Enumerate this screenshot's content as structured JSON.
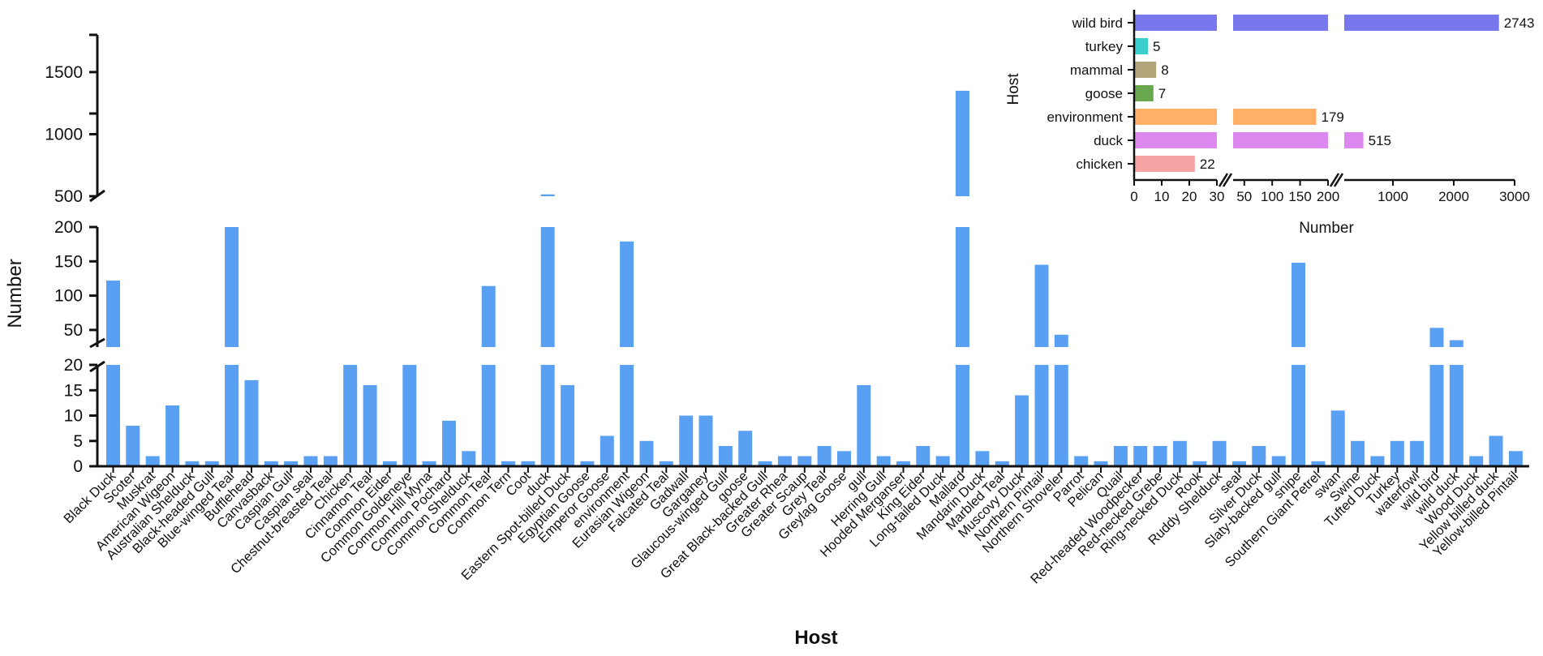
{
  "chart_data": [
    {
      "type": "bar",
      "title": "",
      "xlabel": "Host",
      "ylabel": "Number",
      "y_axis_segments": [
        {
          "range": [
            0,
            20
          ],
          "ticks": [
            "0",
            "5",
            "10",
            "15",
            "20"
          ]
        },
        {
          "range": [
            25,
            200
          ],
          "ticks": [
            "50",
            "100",
            "150",
            "200"
          ]
        },
        {
          "range": [
            500,
            1800
          ],
          "ticks": [
            "500",
            "1000",
            "1500"
          ]
        }
      ],
      "color": "#5aa0f2",
      "categories": [
        "Black Duck",
        "Scoter",
        "Muskrat",
        "American Wigeon",
        "Australian Shelduck",
        "Black-headed Gull",
        "Blue-winged Teal",
        "Bufflehead",
        "Canvasback",
        "Caspian Gull",
        "Caspian seal",
        "Chestnut-breasted Teal",
        "Chicken",
        "Cinnamon Teal",
        "Common Eider",
        "Common Goldeneye",
        "Common Hill Myna",
        "Common Pochard",
        "Common Shelduck",
        "Common Teal",
        "Common Tern",
        "Coot",
        "duck",
        "Eastern Spot-billed Duck",
        "Egyptian Goose",
        "Emperor Goose",
        "environment",
        "Eurasian Wigeon",
        "Falcated Teal",
        "Gadwall",
        "Garganey",
        "Glaucous-winged Gull",
        "goose",
        "Great Black-backed Gull",
        "Greater Rhea",
        "Greater Scaup",
        "Grey Teal",
        "Greylag Goose",
        "gull",
        "Herring Gull",
        "Hooded Merganser",
        "King Eider",
        "Long-tailed Duck",
        "Mallard",
        "Mandarin Duck",
        "Marbled Teal",
        "Muscovy Duck",
        "Northern Pintail",
        "Northern Shoveler",
        "Parrot",
        "Pelican",
        "Quail",
        "Red-headed Woodpecker",
        "Red-necked Grebe",
        "Ring-necked Duck",
        "Rook",
        "Ruddy Shelduck",
        "seal",
        "Silver Duck",
        "Slaty-backed gull",
        "snipe",
        "Southern Giant Petrel",
        "swan",
        "Swine",
        "Tufted Duck",
        "Turkey",
        "waterfowl",
        "wild bird",
        "wild duck",
        "Wood Duck",
        "Yellow billed duck",
        "Yellow-billed Pintail"
      ],
      "values": [
        122,
        8,
        2,
        12,
        1,
        1,
        360,
        17,
        1,
        1,
        2,
        2,
        22,
        16,
        1,
        22,
        1,
        9,
        3,
        114,
        1,
        1,
        515,
        16,
        1,
        6,
        179,
        5,
        1,
        10,
        10,
        4,
        7,
        1,
        2,
        2,
        4,
        3,
        16,
        2,
        1,
        4,
        2,
        1350,
        3,
        1,
        14,
        145,
        43,
        2,
        1,
        4,
        4,
        4,
        5,
        1,
        5,
        1,
        4,
        2,
        148,
        1,
        11,
        5,
        2,
        5,
        5,
        53,
        35,
        2,
        6,
        3
      ]
    },
    {
      "type": "bar",
      "orientation": "horizontal",
      "title": "",
      "xlabel": "Number",
      "ylabel": "Host",
      "x_axis_segments": [
        {
          "range": [
            0,
            30
          ],
          "ticks": [
            "0",
            "10",
            "20",
            "30"
          ]
        },
        {
          "range": [
            30,
            200
          ],
          "ticks": [
            "50",
            "100",
            "150",
            "200"
          ]
        },
        {
          "range": [
            200,
            3000
          ],
          "ticks": [
            "1000",
            "2000",
            "3000"
          ]
        }
      ],
      "categories": [
        "wild bird",
        "turkey",
        "mammal",
        "goose",
        "environment",
        "duck",
        "chicken"
      ],
      "values": [
        2743,
        5,
        8,
        7,
        179,
        515,
        22
      ],
      "labels": [
        "2743",
        "5",
        "8",
        "7",
        "179",
        "515",
        "22"
      ],
      "colors": [
        "#7777ee",
        "#3ccfcf",
        "#b4a47a",
        "#6aa84f",
        "#ffb066",
        "#dd88ee",
        "#f5a3a3"
      ]
    }
  ]
}
